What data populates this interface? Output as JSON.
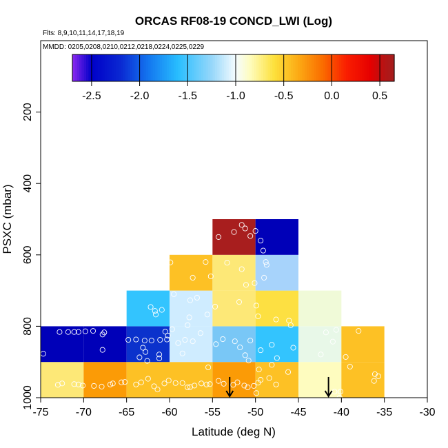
{
  "chart_data": {
    "type": "heatmap",
    "title": "ORCAS RF08-19 CONCD_LWI (Log)",
    "flights_label": "Flts: 8,9,10,11,14,17,18,19",
    "dates_label": "MMDD: 0205,0208,0210,0212,0218,0224,0225,0229",
    "xlabel": "Latitude (deg N)",
    "ylabel": "PSXC (mbar)",
    "xlim": [
      -75,
      -30
    ],
    "ylim": [
      1000,
      0
    ],
    "x_ticks": [
      -75,
      -70,
      -65,
      -60,
      -55,
      -50,
      -45,
      -40,
      -35,
      -30
    ],
    "x_tick_labels": [
      "-75",
      "-70",
      "-65",
      "-60",
      "-55",
      "-50",
      "-45",
      "-40",
      "-35",
      "-30"
    ],
    "y_ticks": [
      200,
      400,
      600,
      800,
      1000
    ],
    "y_tick_labels": [
      "200",
      "400",
      "600",
      "800",
      "1000"
    ],
    "colorbar": {
      "range": [
        -2.7,
        0.65
      ],
      "ticks": [
        -2.5,
        -2.0,
        -1.5,
        -1.0,
        -0.5,
        0.0,
        0.5
      ],
      "tick_labels": [
        "-2.5",
        "-2.0",
        "-1.5",
        "-1.0",
        "-0.5",
        "0.0",
        "0.5"
      ]
    },
    "cells": [
      {
        "lat0": -75,
        "lat1": -70,
        "p0": 900,
        "p1": 1000,
        "value": -0.75,
        "color": "#fde877"
      },
      {
        "lat0": -70,
        "lat1": -65,
        "p0": 900,
        "p1": 1000,
        "value": -0.3,
        "color": "#fb9b06"
      },
      {
        "lat0": -65,
        "lat1": -60,
        "p0": 900,
        "p1": 1000,
        "value": -0.55,
        "color": "#fdc125"
      },
      {
        "lat0": -60,
        "lat1": -55,
        "p0": 900,
        "p1": 1000,
        "value": -0.55,
        "color": "#fdc125"
      },
      {
        "lat0": -55,
        "lat1": -50,
        "p0": 900,
        "p1": 1000,
        "value": -0.3,
        "color": "#fb9b06"
      },
      {
        "lat0": -50,
        "lat1": -45,
        "p0": 900,
        "p1": 1000,
        "value": -0.55,
        "color": "#fdc125"
      },
      {
        "lat0": -45,
        "lat1": -40,
        "p0": 900,
        "p1": 1000,
        "value": -0.85,
        "color": "#fefcbf"
      },
      {
        "lat0": -40,
        "lat1": -35,
        "p0": 900,
        "p1": 1000,
        "value": -0.55,
        "color": "#fdc125"
      },
      {
        "lat0": -75,
        "lat1": -70,
        "p0": 800,
        "p1": 900,
        "value": -2.45,
        "color": "#0000b8"
      },
      {
        "lat0": -70,
        "lat1": -65,
        "p0": 800,
        "p1": 900,
        "value": -2.45,
        "color": "#0000b8"
      },
      {
        "lat0": -65,
        "lat1": -60,
        "p0": 800,
        "p1": 900,
        "value": -2.3,
        "color": "#0b32cc"
      },
      {
        "lat0": -60,
        "lat1": -55,
        "p0": 800,
        "p1": 900,
        "value": -1.15,
        "color": "#cfecff"
      },
      {
        "lat0": -55,
        "lat1": -50,
        "p0": 800,
        "p1": 900,
        "value": -1.45,
        "color": "#79c7f6"
      },
      {
        "lat0": -50,
        "lat1": -45,
        "p0": 800,
        "p1": 900,
        "value": -1.6,
        "color": "#33c4fe"
      },
      {
        "lat0": -45,
        "lat1": -40,
        "p0": 800,
        "p1": 900,
        "value": -1.0,
        "color": "#e8f8e8"
      },
      {
        "lat0": -40,
        "lat1": -35,
        "p0": 800,
        "p1": 900,
        "value": -0.55,
        "color": "#fdc125"
      },
      {
        "lat0": -65,
        "lat1": -60,
        "p0": 700,
        "p1": 800,
        "value": -1.6,
        "color": "#33c4fe"
      },
      {
        "lat0": -60,
        "lat1": -55,
        "p0": 700,
        "p1": 800,
        "value": -1.15,
        "color": "#cfecff"
      },
      {
        "lat0": -55,
        "lat1": -50,
        "p0": 700,
        "p1": 800,
        "value": -0.75,
        "color": "#fde877"
      },
      {
        "lat0": -50,
        "lat1": -45,
        "p0": 700,
        "p1": 800,
        "value": -0.7,
        "color": "#fde042"
      },
      {
        "lat0": -45,
        "lat1": -40,
        "p0": 700,
        "p1": 800,
        "value": -0.9,
        "color": "#f0fad8"
      },
      {
        "lat0": -60,
        "lat1": -55,
        "p0": 600,
        "p1": 700,
        "value": -0.55,
        "color": "#fdc125"
      },
      {
        "lat0": -55,
        "lat1": -50,
        "p0": 600,
        "p1": 700,
        "value": -0.75,
        "color": "#fde877"
      },
      {
        "lat0": -50,
        "lat1": -45,
        "p0": 600,
        "p1": 700,
        "value": -1.35,
        "color": "#a7d3fb"
      },
      {
        "lat0": -55,
        "lat1": -50,
        "p0": 500,
        "p1": 600,
        "value": 0.6,
        "color": "#a81e1e"
      },
      {
        "lat0": -50,
        "lat1": -45,
        "p0": 500,
        "p1": 600,
        "value": -2.45,
        "color": "#0000b8"
      }
    ],
    "points": [
      [
        -74.7,
        877
      ],
      [
        -72.8,
        816
      ],
      [
        -71.8,
        816
      ],
      [
        -71.1,
        816
      ],
      [
        -70.6,
        816
      ],
      [
        -69.8,
        814
      ],
      [
        -68.9,
        813
      ],
      [
        -67.8,
        823
      ],
      [
        -67.6,
        817
      ],
      [
        -67.8,
        866
      ],
      [
        -73.0,
        964
      ],
      [
        -72.5,
        960
      ],
      [
        -71.1,
        962
      ],
      [
        -70.6,
        963
      ],
      [
        -70.1,
        966
      ],
      [
        -68.8,
        967
      ],
      [
        -67.9,
        969
      ],
      [
        -66.9,
        963
      ],
      [
        -66.6,
        960
      ],
      [
        -65.6,
        957
      ],
      [
        -65.2,
        956
      ],
      [
        -64.8,
        838
      ],
      [
        -63.9,
        837
      ],
      [
        -63.1,
        860
      ],
      [
        -62.8,
        872
      ],
      [
        -63.5,
        887
      ],
      [
        -62.9,
        840
      ],
      [
        -62.1,
        840
      ],
      [
        -61.1,
        838
      ],
      [
        -61.2,
        879
      ],
      [
        -61.2,
        890
      ],
      [
        -62.6,
        897
      ],
      [
        -60.3,
        837
      ],
      [
        -60.5,
        815
      ],
      [
        -60.2,
        826
      ],
      [
        -59.7,
        808
      ],
      [
        -59.0,
        847
      ],
      [
        -58.5,
        876
      ],
      [
        -58.2,
        838
      ],
      [
        -57.9,
        797
      ],
      [
        -57.3,
        842
      ],
      [
        -56.4,
        819
      ],
      [
        -62.2,
        746
      ],
      [
        -61.7,
        757
      ],
      [
        -61.6,
        767
      ],
      [
        -60.9,
        754
      ],
      [
        -59.5,
        710
      ],
      [
        -57.6,
        727
      ],
      [
        -57.7,
        775
      ],
      [
        -56.8,
        720
      ],
      [
        -63.9,
        963
      ],
      [
        -63.3,
        957
      ],
      [
        -62.5,
        947
      ],
      [
        -61.8,
        968
      ],
      [
        -61.4,
        977
      ],
      [
        -60.6,
        960
      ],
      [
        -60.1,
        952
      ],
      [
        -59.3,
        959
      ],
      [
        -58.5,
        959
      ],
      [
        -57.9,
        971
      ],
      [
        -57.6,
        970
      ],
      [
        -57.1,
        966
      ],
      [
        -56.3,
        960
      ],
      [
        -55.7,
        963
      ],
      [
        -55.3,
        962
      ],
      [
        -54.3,
        953
      ],
      [
        -53.7,
        961
      ],
      [
        -52.6,
        964
      ],
      [
        -52.1,
        957
      ],
      [
        -51.3,
        966
      ],
      [
        -50.9,
        971
      ],
      [
        -50.2,
        967
      ],
      [
        -49.7,
        958
      ],
      [
        -49.9,
        987
      ],
      [
        -49.4,
        950
      ],
      [
        -48.4,
        945
      ],
      [
        -47.6,
        963
      ],
      [
        -55.8,
        620
      ],
      [
        -57.3,
        664
      ],
      [
        -59.9,
        621
      ],
      [
        -55.2,
        660
      ],
      [
        -53.3,
        622
      ],
      [
        -51.6,
        640
      ],
      [
        -51.1,
        684
      ],
      [
        -50.1,
        679
      ],
      [
        -48.7,
        628
      ],
      [
        -49.0,
        664
      ],
      [
        -48.8,
        620
      ],
      [
        -55.6,
        767
      ],
      [
        -54.7,
        745
      ],
      [
        -51.9,
        732
      ],
      [
        -49.9,
        742
      ],
      [
        -49.7,
        772
      ],
      [
        -47.6,
        781
      ],
      [
        -46.1,
        784
      ],
      [
        -45.9,
        797
      ],
      [
        -54.6,
        850
      ],
      [
        -53.8,
        836
      ],
      [
        -52.4,
        842
      ],
      [
        -51.8,
        859
      ],
      [
        -50.6,
        840
      ],
      [
        -49.4,
        867
      ],
      [
        -48.1,
        852
      ],
      [
        -45.6,
        860
      ],
      [
        -55.5,
        915
      ],
      [
        -51.2,
        881
      ],
      [
        -50.8,
        896
      ],
      [
        -49.6,
        921
      ],
      [
        -48.1,
        908
      ],
      [
        -47.5,
        889
      ],
      [
        -46.2,
        928
      ],
      [
        -42.4,
        879
      ],
      [
        -41.8,
        817
      ],
      [
        -41.0,
        843
      ],
      [
        -40.6,
        810
      ],
      [
        -39.5,
        886
      ],
      [
        -39.0,
        913
      ],
      [
        -38.0,
        813
      ],
      [
        -36.2,
        953
      ],
      [
        -36.1,
        934
      ],
      [
        -35.7,
        940
      ],
      [
        -40.8,
        983
      ],
      [
        -40.1,
        983
      ],
      [
        -40.2,
        1000
      ],
      [
        -50.0,
        533
      ],
      [
        -52.5,
        536
      ],
      [
        -54.3,
        550
      ],
      [
        -55.4,
        520
      ],
      [
        -51.6,
        516
      ],
      [
        -51.2,
        526
      ],
      [
        -50.6,
        547
      ],
      [
        -49.4,
        560
      ],
      [
        -49.1,
        588
      ]
    ],
    "arrows": [
      {
        "lat": -53.0,
        "p_top": 942,
        "p_tip": 1000
      },
      {
        "lat": -41.5,
        "p_top": 942,
        "p_tip": 1000
      }
    ]
  }
}
